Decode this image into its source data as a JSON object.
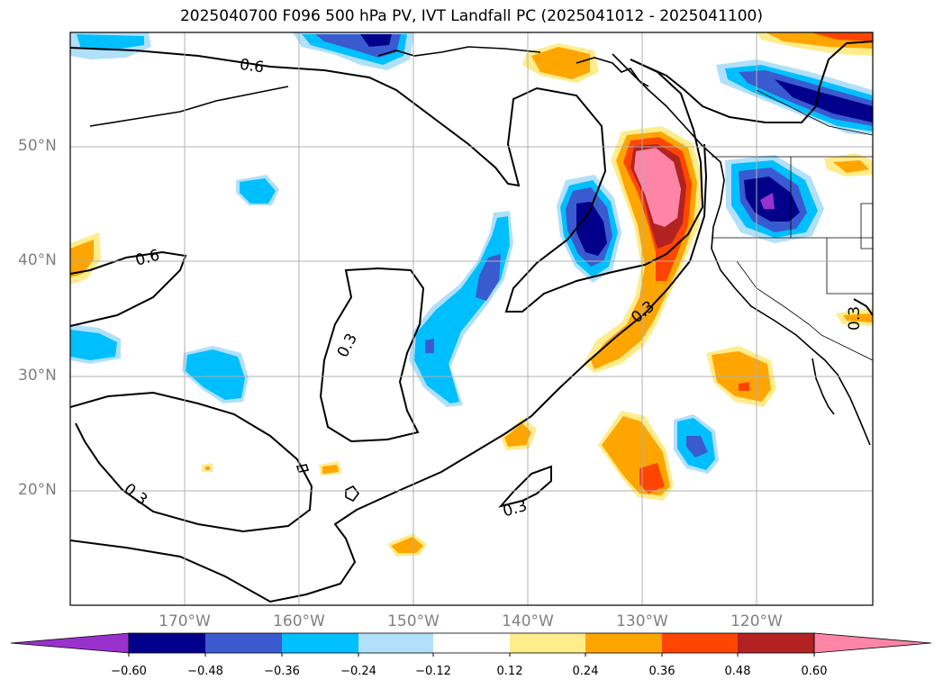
{
  "title": "2025040700 F096 500 hPa PV, IVT Landfall PC (2025041012 - 2025041100)",
  "latitude_labels": [
    "50°N",
    "40°N",
    "30°N",
    "20°N"
  ],
  "longitude_labels": [
    "170°W",
    "160°W",
    "150°W",
    "140°W",
    "130°W",
    "120°W"
  ],
  "colorbar": {
    "tick_labels": [
      "−0.60",
      "−0.48",
      "−0.36",
      "−0.24",
      "−0.12",
      "0.12",
      "0.24",
      "0.36",
      "0.48",
      "0.60"
    ],
    "bins": [
      {
        "range": "< -0.60",
        "color": "#9932cc"
      },
      {
        "range": "-0.60 to -0.48",
        "color": "#00008b"
      },
      {
        "range": "-0.48 to -0.36",
        "color": "#3a5bd0"
      },
      {
        "range": "-0.36 to -0.24",
        "color": "#00bfff"
      },
      {
        "range": "-0.24 to -0.12",
        "color": "#b0e0fa"
      },
      {
        "range": "-0.12 to 0.12",
        "color": "#ffffff"
      },
      {
        "range": "0.12 to 0.24",
        "color": "#ffec8b"
      },
      {
        "range": "0.24 to 0.36",
        "color": "#ffa500"
      },
      {
        "range": "0.36 to 0.48",
        "color": "#ff4500"
      },
      {
        "range": "0.48 to 0.60",
        "color": "#b22222"
      },
      {
        "range": "> 0.60",
        "color": "#ff85a6"
      }
    ]
  },
  "contour_labels": [
    "0.6",
    "0.6",
    "0.3",
    "0.3",
    "0.3",
    "0.3",
    "0.3"
  ],
  "colors": {
    "grid": "#b0b0b0",
    "coast": "#000000",
    "contour": "#000000"
  }
}
